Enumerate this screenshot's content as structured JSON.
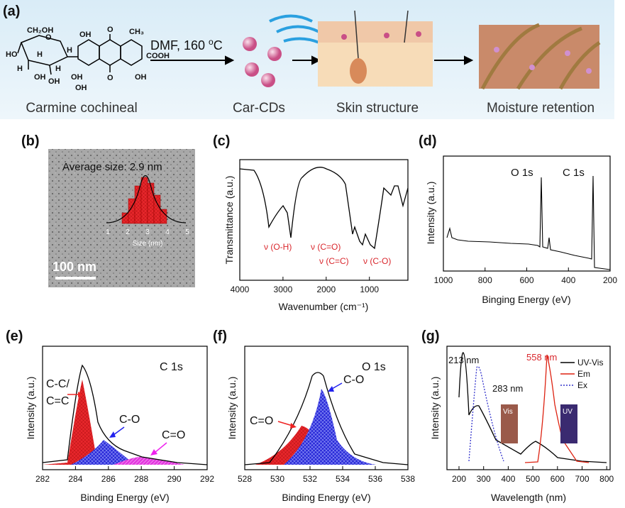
{
  "panel_a": {
    "label": "(a)",
    "reaction": [
      "DMF, 160 ",
      "o",
      "C"
    ],
    "molecule": [
      "CH₂OH",
      "O",
      "HO",
      "H",
      "H",
      "OH",
      "H",
      "OH",
      "H",
      "OH",
      "CH₃",
      "O",
      "COOH",
      "OH",
      "OH",
      "OH",
      "O"
    ],
    "captions": [
      "Carmine cochineal",
      "Car-CDs",
      "Skin structure",
      "Moisture retention"
    ]
  },
  "panel_b": {
    "label": "(b)",
    "average": "Average size: 2.9 nm",
    "scale": "100 nm",
    "hist_ticks": [
      1,
      2,
      3,
      4,
      5
    ],
    "hist_xlabel": "Size (nm)"
  },
  "panel_c": {
    "label": "(c)",
    "ylabel": "Transmittance (a.u.)",
    "xlabel": "Wavenumber (cm⁻¹)",
    "xticks": [
      4000,
      3000,
      2000,
      1000
    ],
    "annotations": [
      "ν (O-H)",
      "ν (C=O)",
      "ν (C=C)",
      "ν (C-O)"
    ]
  },
  "panel_d": {
    "label": "(d)",
    "ylabel": "Intensity (a.u.)",
    "xlabel": "Binging Energy (eV)",
    "xticks": [
      1000,
      800,
      600,
      400,
      200
    ],
    "peaks": [
      "O 1s",
      "C 1s"
    ]
  },
  "panel_e": {
    "label": "(e)",
    "ylabel": "Intensity (a.u.)",
    "xlabel": "Binding Energy (eV)",
    "xticks": [
      282,
      284,
      286,
      288,
      290,
      292
    ],
    "title": "C 1s",
    "annotations": [
      "C-C/",
      "C=C",
      "C-O",
      "C=O"
    ]
  },
  "panel_f": {
    "label": "(f)",
    "ylabel": "Intensity (a.u.)",
    "xlabel": "Binding Energy (eV)",
    "xticks": [
      528,
      530,
      532,
      534,
      536,
      538
    ],
    "title": "O 1s",
    "annotations": [
      "C=O",
      "C-O"
    ]
  },
  "panel_g": {
    "label": "(g)",
    "ylabel": "Intensity (a.u.)",
    "xlabel": "Wavelength (nm)",
    "xticks": [
      200,
      300,
      400,
      500,
      600,
      700,
      800
    ],
    "annotations": [
      "213 nm",
      "283 nm",
      "558 nm"
    ],
    "legend": [
      "UV-Vis",
      "Em",
      "Ex"
    ],
    "insets": [
      "Vis",
      "UV"
    ]
  }
}
